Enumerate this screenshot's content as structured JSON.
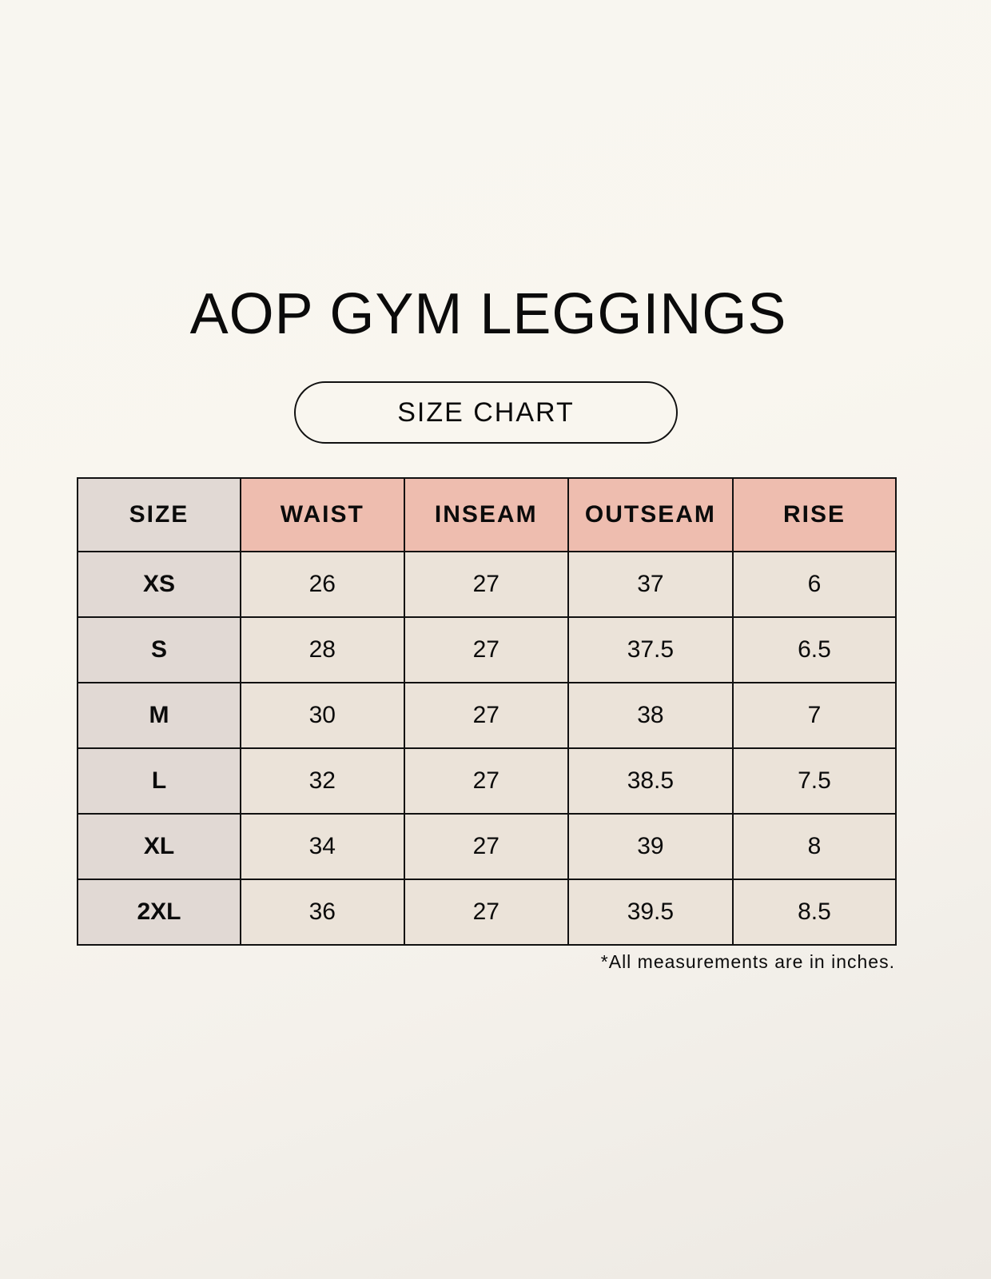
{
  "title": "AOP GYM LEGGINGS",
  "subtitle": "SIZE CHART",
  "colors": {
    "header_accent": "#eebdaf",
    "size_column": "#e1d9d4",
    "cell": "#ebe3d9"
  },
  "table": {
    "headers": [
      "SIZE",
      "WAIST",
      "INSEAM",
      "OUTSEAM",
      "RISE"
    ],
    "rows": [
      [
        "XS",
        "26",
        "27",
        "37",
        "6"
      ],
      [
        "S",
        "28",
        "27",
        "37.5",
        "6.5"
      ],
      [
        "M",
        "30",
        "27",
        "38",
        "7"
      ],
      [
        "L",
        "32",
        "27",
        "38.5",
        "7.5"
      ],
      [
        "XL",
        "34",
        "27",
        "39",
        "8"
      ],
      [
        "2XL",
        "36",
        "27",
        "39.5",
        "8.5"
      ]
    ]
  },
  "note": "*All measurements are in inches."
}
